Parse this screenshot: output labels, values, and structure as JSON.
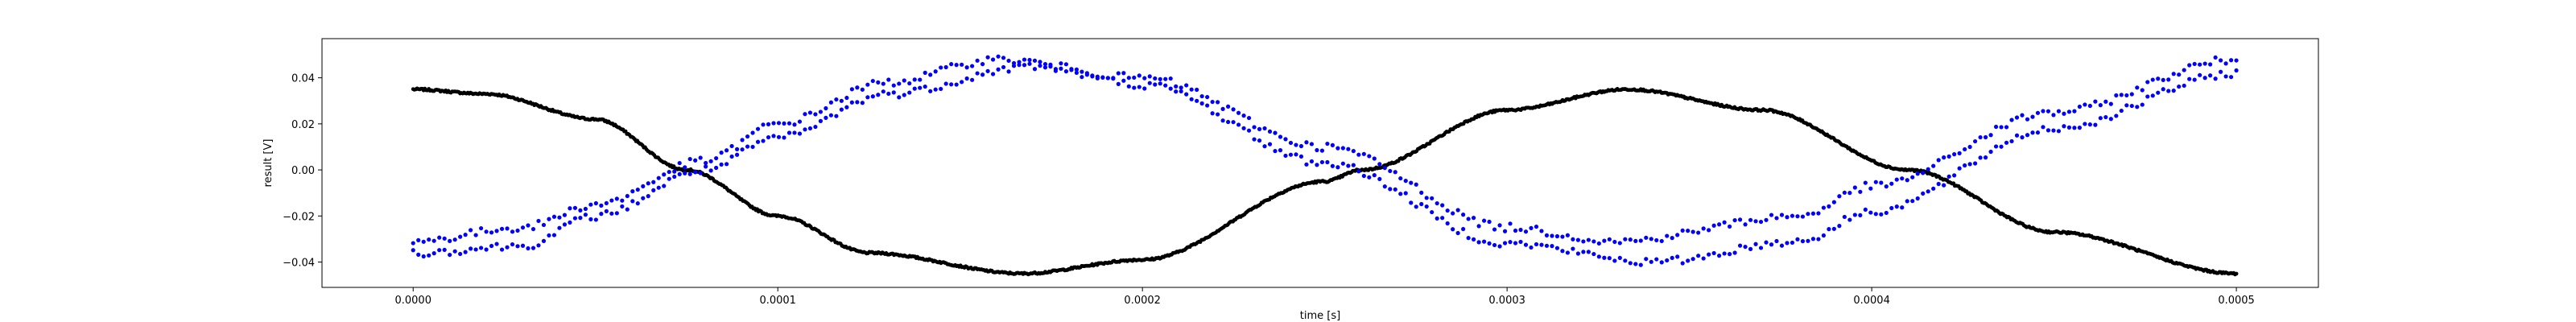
{
  "chart_data": {
    "type": "scatter",
    "xlabel": "time [s]",
    "ylabel": "result [V]",
    "xlim": [
      -2.5e-05,
      0.0005225
    ],
    "ylim": [
      -0.051,
      0.057
    ],
    "x_ticks": [
      0,
      0.0001,
      0.0002,
      0.0003,
      0.0004,
      0.0005
    ],
    "x_tick_labels": [
      "0.0000",
      "0.0001",
      "0.0002",
      "0.0003",
      "0.0004",
      "0.0005"
    ],
    "y_ticks": [
      -0.04,
      -0.02,
      0.0,
      0.02,
      0.04
    ],
    "y_tick_labels": [
      "−0.04",
      "−0.02",
      "0.00",
      "0.02",
      "0.04"
    ],
    "grid": false,
    "series": [
      {
        "color": "#000000",
        "marker": "dot",
        "x_range": [
          0,
          0.0005
        ],
        "points": [
          {
            "x": 0.0,
            "y": 0.035
          },
          {
            "x": 2e-05,
            "y": 0.033
          },
          {
            "x": 5e-05,
            "y": 0.022
          },
          {
            "x": 7.5e-05,
            "y": 0.0
          },
          {
            "x": 0.0001,
            "y": -0.02
          },
          {
            "x": 0.000125,
            "y": -0.036
          },
          {
            "x": 0.000167,
            "y": -0.045
          },
          {
            "x": 0.0002,
            "y": -0.039
          },
          {
            "x": 0.00025,
            "y": -0.005
          },
          {
            "x": 0.00026,
            "y": 0.0
          },
          {
            "x": 0.0003,
            "y": 0.026
          },
          {
            "x": 0.000333,
            "y": 0.035
          },
          {
            "x": 0.00037,
            "y": 0.026
          },
          {
            "x": 0.00041,
            "y": 0.0
          },
          {
            "x": 0.00045,
            "y": -0.027
          },
          {
            "x": 0.0005,
            "y": -0.045
          }
        ]
      },
      {
        "color": "#0000ff",
        "marker": "dot",
        "x_range": [
          0,
          0.0005
        ],
        "points": [
          {
            "x": 0.0,
            "y": -0.031
          },
          {
            "x": 3e-05,
            "y": -0.025
          },
          {
            "x": 5e-05,
            "y": -0.015
          },
          {
            "x": 8e-05,
            "y": 0.004
          },
          {
            "x": 0.0001,
            "y": 0.02
          },
          {
            "x": 0.00013,
            "y": 0.038
          },
          {
            "x": 0.00016,
            "y": 0.048
          },
          {
            "x": 0.0002,
            "y": 0.04
          },
          {
            "x": 0.00025,
            "y": 0.01
          },
          {
            "x": 0.0003,
            "y": -0.025
          },
          {
            "x": 0.00033,
            "y": -0.031
          },
          {
            "x": 0.00038,
            "y": -0.02
          },
          {
            "x": 0.0004,
            "y": -0.007
          },
          {
            "x": 0.00045,
            "y": 0.025
          },
          {
            "x": 0.0005,
            "y": 0.048
          }
        ]
      },
      {
        "color": "#0000ff",
        "marker": "dot",
        "x_range": [
          0,
          0.0005
        ],
        "points": [
          {
            "x": 0.0,
            "y": -0.036
          },
          {
            "x": 3e-05,
            "y": -0.033
          },
          {
            "x": 5e-05,
            "y": -0.02
          },
          {
            "x": 8e-05,
            "y": 0.0
          },
          {
            "x": 0.0001,
            "y": 0.014
          },
          {
            "x": 0.00013,
            "y": 0.033
          },
          {
            "x": 0.00017,
            "y": 0.045
          },
          {
            "x": 0.0002,
            "y": 0.037
          },
          {
            "x": 0.00025,
            "y": 0.003
          },
          {
            "x": 0.0003,
            "y": -0.032
          },
          {
            "x": 0.00034,
            "y": -0.04
          },
          {
            "x": 0.00038,
            "y": -0.031
          },
          {
            "x": 0.0004,
            "y": -0.018
          },
          {
            "x": 0.00045,
            "y": 0.018
          },
          {
            "x": 0.0005,
            "y": 0.042
          }
        ]
      }
    ]
  }
}
